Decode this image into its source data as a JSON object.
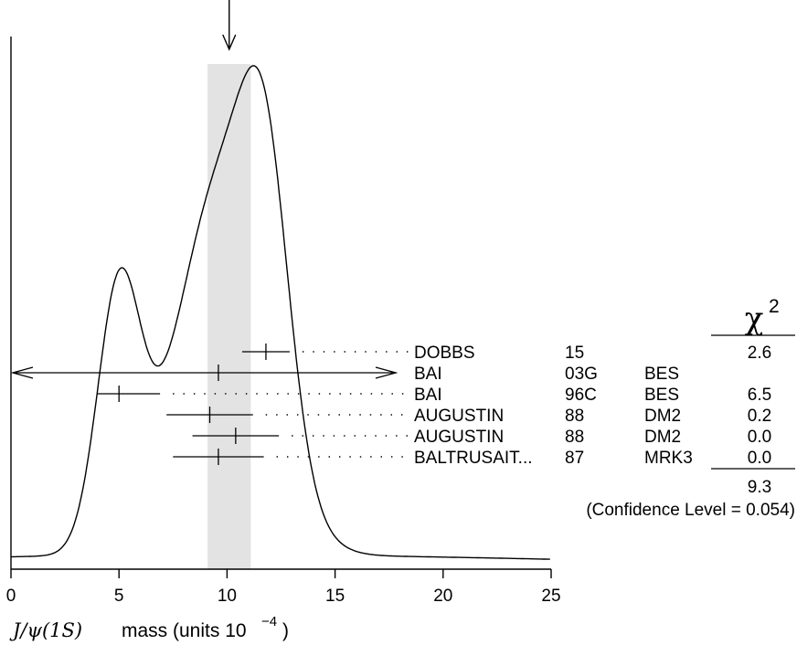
{
  "chart_data": {
    "type": "ideogram",
    "xlim": [
      0,
      25
    ],
    "x_ticks": [
      0,
      5,
      10,
      15,
      20,
      25
    ],
    "x_tick_labels": [
      "0",
      "5",
      "10",
      "15",
      "20",
      "25"
    ],
    "xlabel": {
      "symbol": "J/ψ(1S)",
      "text": "mass (units 10",
      "exp": "−4",
      "close": ")"
    },
    "average": {
      "value": 10.1,
      "error": 1.0
    },
    "measurements": [
      {
        "author": "DOBBS",
        "year": "15",
        "expt": "",
        "value": 11.8,
        "error": 1.1,
        "chi2": "2.6"
      },
      {
        "author": "BAI",
        "year": "03G",
        "expt": "BES",
        "value": 9.6,
        "error": 18.0,
        "chi2": ""
      },
      {
        "author": "BAI",
        "year": "96C",
        "expt": "BES",
        "value": 5.0,
        "error": 1.0,
        "err_plus": 1.9,
        "chi2": "6.5"
      },
      {
        "author": "AUGUSTIN",
        "year": "88",
        "expt": "DM2",
        "value": 9.2,
        "error": 2.0,
        "chi2": "0.2"
      },
      {
        "author": "AUGUSTIN",
        "year": "88",
        "expt": "DM2",
        "value": 10.4,
        "error": 2.0,
        "chi2": "0.0"
      },
      {
        "author": "BALTRUSAIT...",
        "year": "87",
        "expt": "MRK3",
        "value": 9.6,
        "error": 2.1,
        "chi2": "0.0"
      }
    ],
    "chi2_header": "χ",
    "chi2_header_exp": "2",
    "chi2_total": "9.3",
    "confidence_level_text": "(Confidence Level = 0.054)"
  }
}
